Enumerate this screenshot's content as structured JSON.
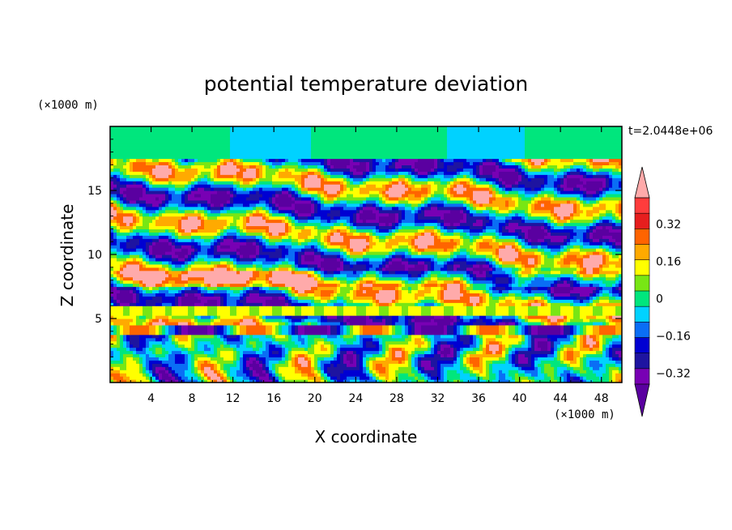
{
  "chart_data": {
    "type": "heatmap",
    "title": "potential temperature deviation",
    "xlabel": "X coordinate",
    "ylabel": "Z coordinate",
    "x_unit": "(×1000 m)",
    "y_unit": "(×1000 m)",
    "time_label": "t=2.0448e+06",
    "xlim": [
      0,
      50
    ],
    "ylim": [
      0,
      20
    ],
    "x_ticks": [
      4,
      8,
      12,
      16,
      20,
      24,
      28,
      32,
      36,
      40,
      44,
      48
    ],
    "y_ticks": [
      5,
      10,
      15
    ],
    "x_tick_labels": [
      "4",
      "8",
      "12",
      "16",
      "20",
      "24",
      "28",
      "32",
      "36",
      "40",
      "44",
      "48"
    ],
    "y_tick_labels": [
      "5",
      "10",
      "15"
    ],
    "colorbar": {
      "levels": [
        -0.4,
        -0.32,
        -0.24,
        -0.16,
        -0.08,
        0,
        0.08,
        0.16,
        0.24,
        0.32,
        0.4
      ],
      "colors": [
        "#5a00a0",
        "#7800b4",
        "#1e14a0",
        "#0000d2",
        "#0a6ef5",
        "#00d2ff",
        "#00e67d",
        "#78e614",
        "#ffff00",
        "#ffaa00",
        "#ff6400",
        "#e61e1e",
        "#ff3c3c",
        "#ffaaaa"
      ],
      "tick_labels": [
        "0.32",
        "0.16",
        "0",
        "−0.16",
        "−0.32"
      ],
      "tick_values": [
        0.32,
        0.16,
        0,
        -0.16,
        -0.32
      ]
    },
    "field_description": "layered turbulent field with alternating warm and cool bands"
  }
}
